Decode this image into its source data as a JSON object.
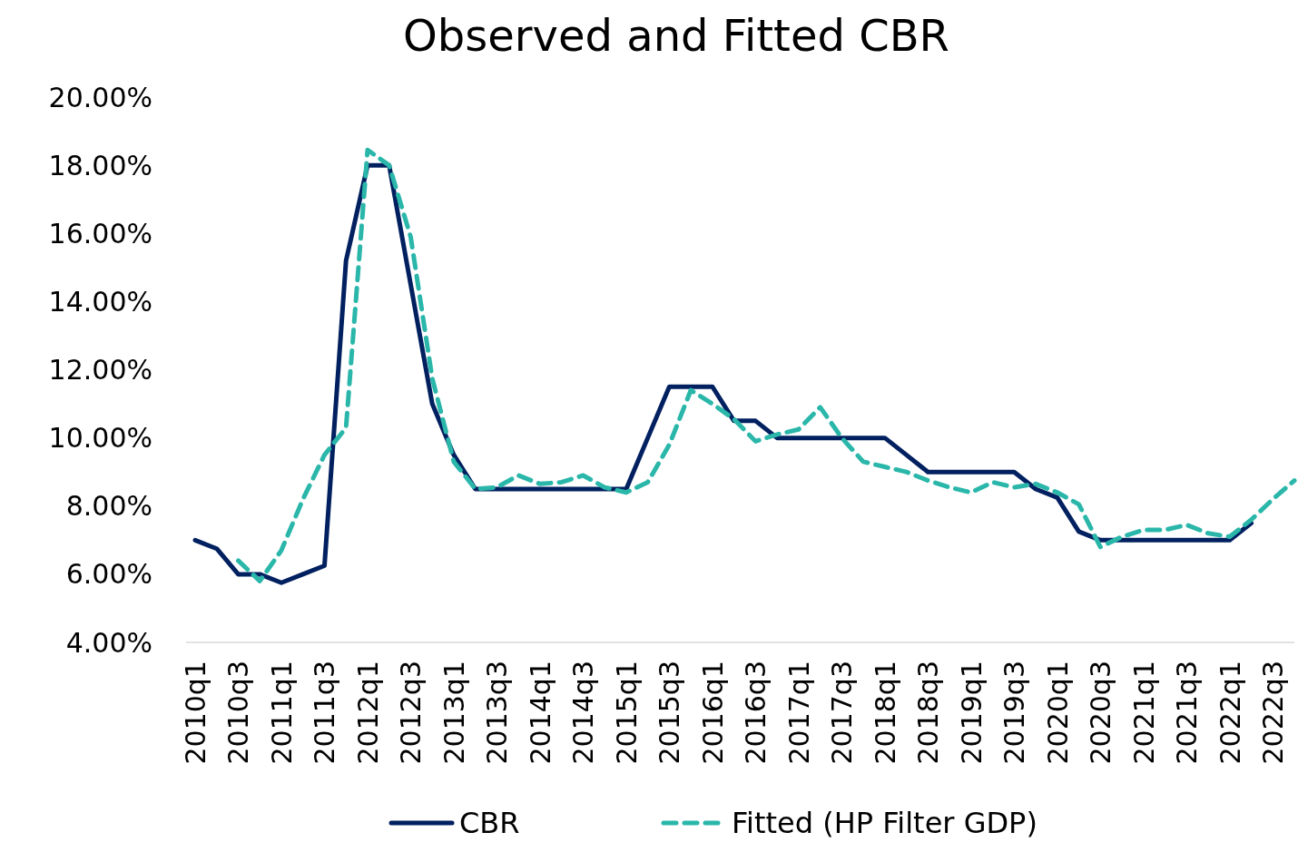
{
  "chart_data": {
    "type": "line",
    "title": "Observed and Fitted CBR",
    "categories": [
      "2010q1",
      null,
      "2010q3",
      null,
      "2011q1",
      null,
      "2011q3",
      null,
      "2012q1",
      null,
      "2012q3",
      null,
      "2013q1",
      null,
      "2013q3",
      null,
      "2014q1",
      null,
      "2014q3",
      null,
      "2015q1",
      null,
      "2015q3",
      null,
      "2016q1",
      null,
      "2016q3",
      null,
      "2017q1",
      null,
      "2017q3",
      null,
      "2018q1",
      null,
      "2018q3",
      null,
      "2019q1",
      null,
      "2019q3",
      null,
      "2020q1",
      null,
      "2020q3",
      null,
      "2021q1",
      null,
      "2021q3",
      null,
      "2022q1",
      null,
      "2022q3",
      null
    ],
    "series": [
      {
        "name": "CBR",
        "color": "#012060",
        "line_style": "solid",
        "values": [
          7.0,
          6.75,
          6.0,
          6.0,
          5.75,
          6.0,
          6.25,
          15.2,
          18.0,
          18.0,
          14.5,
          11.0,
          9.5,
          8.5,
          8.5,
          8.5,
          8.5,
          8.5,
          8.5,
          8.5,
          8.5,
          10.0,
          11.5,
          11.5,
          11.5,
          10.5,
          10.5,
          10.0,
          10.0,
          10.0,
          10.0,
          10.0,
          10.0,
          9.5,
          9.0,
          9.0,
          9.0,
          9.0,
          9.0,
          8.5,
          8.25,
          7.25,
          7.0,
          7.0,
          7.0,
          7.0,
          7.0,
          7.0,
          7.0,
          7.5,
          null,
          null
        ]
      },
      {
        "name": "Fitted (HP Filter GDP)",
        "color": "#2ab7aa",
        "line_style": "dashed",
        "values": [
          null,
          null,
          6.4,
          5.8,
          6.7,
          8.2,
          9.5,
          10.3,
          18.45,
          18.0,
          15.9,
          11.75,
          9.3,
          8.5,
          8.55,
          8.9,
          8.65,
          8.7,
          8.9,
          8.55,
          8.4,
          8.7,
          9.8,
          11.4,
          11.0,
          10.55,
          9.9,
          10.1,
          10.25,
          10.9,
          10.0,
          9.3,
          9.15,
          9.0,
          8.75,
          8.55,
          8.4,
          8.7,
          8.55,
          8.65,
          8.4,
          8.05,
          6.8,
          7.1,
          7.3,
          7.3,
          7.45,
          7.2,
          7.1,
          7.6,
          8.2,
          8.75
        ]
      }
    ],
    "ylim": [
      4,
      20
    ],
    "yticks": [
      {
        "value": 4,
        "label": "4.00%"
      },
      {
        "value": 6,
        "label": "6.00%"
      },
      {
        "value": 8,
        "label": "8.00%"
      },
      {
        "value": 10,
        "label": "10.00%"
      },
      {
        "value": 12,
        "label": "12.00%"
      },
      {
        "value": 14,
        "label": "14.00%"
      },
      {
        "value": 16,
        "label": "16.00%"
      },
      {
        "value": 18,
        "label": "18.00%"
      },
      {
        "value": 20,
        "label": "20.00%"
      }
    ],
    "grid": false,
    "legend": "bottom"
  }
}
